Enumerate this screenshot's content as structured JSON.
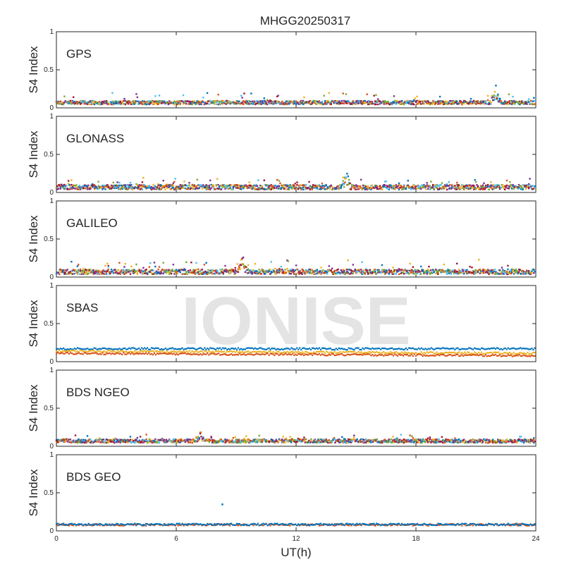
{
  "chart_data": {
    "type": "scatter",
    "title": "MHGG20250317",
    "xlabel": "UT(h)",
    "ylabel": "S4 Index",
    "xlim": [
      0,
      24
    ],
    "ylim": [
      0,
      1
    ],
    "x_ticks": [
      0,
      6,
      12,
      18,
      24
    ],
    "y_ticks": [
      0,
      0.5,
      1
    ],
    "y_tick_labels": [
      "0",
      "0.5",
      "1"
    ],
    "watermark": "IONISE",
    "colors": [
      "#0072BD",
      "#D95319",
      "#EDB120",
      "#7E2F8E",
      "#77AC30",
      "#4DBEEE",
      "#A2142F"
    ],
    "panels": [
      {
        "name": "GPS",
        "base": 0.07,
        "spread": 0.03,
        "max": 0.33,
        "peak_time": 22,
        "sat_count": 7
      },
      {
        "name": "GLONASS",
        "base": 0.07,
        "spread": 0.04,
        "max": 0.27,
        "peak_time": 14.5,
        "sat_count": 7
      },
      {
        "name": "GALILEO",
        "base": 0.07,
        "spread": 0.04,
        "max": 0.33,
        "peak_time": 9.3,
        "sat_count": 7
      },
      {
        "name": "SBAS",
        "levels": [
          {
            "color": "#0072BD",
            "start": 0.17,
            "end": 0.17
          },
          {
            "color": "#EDB120",
            "start": 0.14,
            "end": 0.11
          },
          {
            "color": "#D95319",
            "start": 0.11,
            "end": 0.08
          }
        ]
      },
      {
        "name": "BDS NGEO",
        "base": 0.07,
        "spread": 0.03,
        "max": 0.22,
        "peak_time": 7.2,
        "sat_count": 7
      },
      {
        "name": "BDS GEO",
        "levels": [
          {
            "color": "#D95319",
            "start": 0.08,
            "end": 0.08
          },
          {
            "color": "#0072BD",
            "start": 0.085,
            "end": 0.085
          }
        ],
        "outlier": {
          "x": 8.3,
          "y": 0.35
        }
      }
    ]
  }
}
